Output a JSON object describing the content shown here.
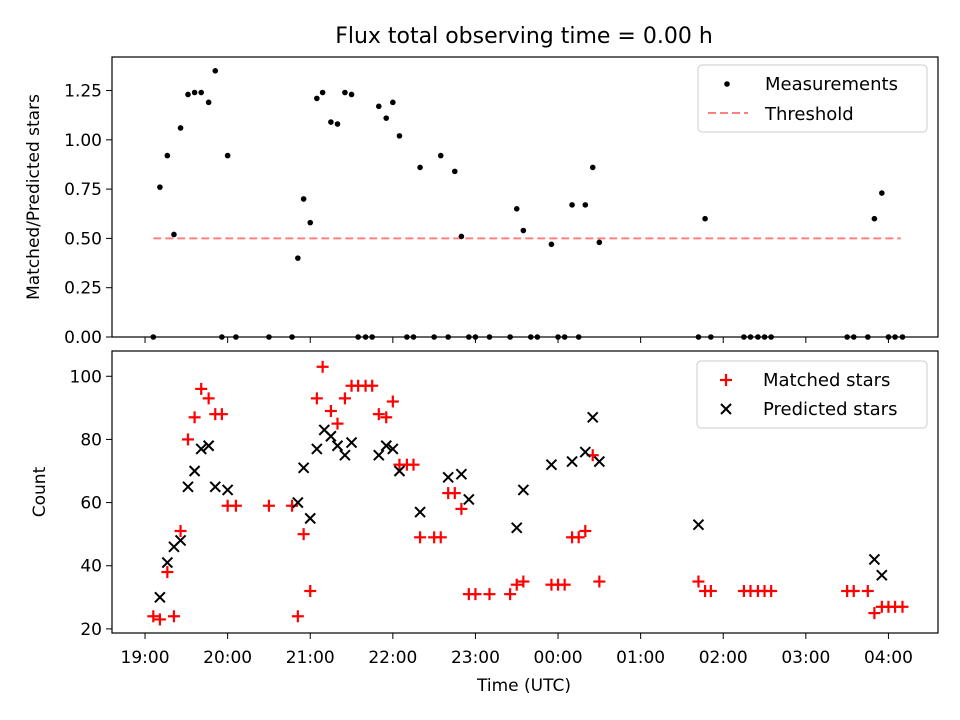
{
  "title": "Flux total observing time = 0.00 h",
  "chart_data": [
    {
      "type": "scatter",
      "title": "Flux total observing time = 0.00 h",
      "xlabel": "",
      "ylabel": "Matched/Predicted stars",
      "ylim": [
        0,
        1.42
      ],
      "yticks": [
        "0.00",
        "0.25",
        "0.50",
        "0.75",
        "1.00",
        "1.25"
      ],
      "ytick_values": [
        0,
        0.25,
        0.5,
        0.75,
        1.0,
        1.25
      ],
      "legend": {
        "placement": "top-right",
        "entries": [
          "Measurements",
          "Threshold"
        ]
      },
      "threshold": {
        "name": "Threshold",
        "y": 0.5,
        "x": [
          19.1,
          28.15
        ],
        "color": "#ff8080"
      },
      "series": [
        {
          "name": "Measurements",
          "color": "#000000",
          "x": [
            19.1,
            19.18,
            19.27,
            19.35,
            19.43,
            19.52,
            19.6,
            19.68,
            19.77,
            19.85,
            19.93,
            20.0,
            20.1,
            20.5,
            20.78,
            20.85,
            20.92,
            21.0,
            21.08,
            21.15,
            21.25,
            21.33,
            21.42,
            21.5,
            21.58,
            21.67,
            21.75,
            21.83,
            21.92,
            22.0,
            22.08,
            22.17,
            22.25,
            22.33,
            22.5,
            22.58,
            22.67,
            22.75,
            22.83,
            22.92,
            23.0,
            23.17,
            23.42,
            23.5,
            23.58,
            23.67,
            23.75,
            23.92,
            24.0,
            24.08,
            24.17,
            24.25,
            24.33,
            24.42,
            24.5,
            25.7,
            25.78,
            25.85,
            26.25,
            26.33,
            26.42,
            26.5,
            26.58,
            27.5,
            27.58,
            27.75,
            27.83,
            27.92,
            28.0,
            28.08,
            28.17
          ],
          "y": [
            0,
            0.76,
            0.92,
            0.52,
            1.06,
            1.23,
            1.24,
            1.24,
            1.19,
            1.35,
            0,
            0.92,
            0,
            0,
            0,
            0.4,
            0.7,
            0.58,
            1.21,
            1.24,
            1.09,
            1.08,
            1.24,
            1.23,
            0,
            0,
            0,
            1.17,
            1.11,
            1.19,
            1.02,
            0,
            0,
            0.86,
            0,
            0.92,
            0,
            0.84,
            0.51,
            0,
            0,
            0,
            0,
            0.65,
            0.54,
            0,
            0,
            0.47,
            0,
            0,
            0.67,
            0,
            0.67,
            0.86,
            0.48,
            0,
            0.6,
            0,
            0,
            0,
            0,
            0,
            0,
            0,
            0,
            0,
            0.6,
            0.73,
            0,
            0,
            0
          ]
        }
      ]
    },
    {
      "type": "scatter",
      "title": "",
      "xlabel": "Time (UTC)",
      "ylabel": "Count",
      "ylim": [
        18.7,
        108
      ],
      "yticks": [
        "20",
        "40",
        "60",
        "80",
        "100"
      ],
      "ytick_values": [
        20,
        40,
        60,
        80,
        100
      ],
      "xlim": [
        18.6,
        28.6
      ],
      "xticks": [
        "19:00",
        "20:00",
        "21:00",
        "22:00",
        "23:00",
        "00:00",
        "01:00",
        "02:00",
        "03:00",
        "04:00"
      ],
      "xtick_values": [
        19,
        20,
        21,
        22,
        23,
        24,
        25,
        26,
        27,
        28
      ],
      "legend": {
        "placement": "top-right",
        "entries": [
          "Matched stars",
          "Predicted stars"
        ]
      },
      "series": [
        {
          "name": "Matched stars",
          "marker": "plus",
          "color": "#ff0000",
          "x": [
            19.1,
            19.18,
            19.27,
            19.35,
            19.43,
            19.52,
            19.6,
            19.68,
            19.77,
            19.85,
            19.93,
            20.0,
            20.1,
            20.5,
            20.78,
            20.85,
            20.92,
            21.0,
            21.08,
            21.15,
            21.25,
            21.33,
            21.42,
            21.5,
            21.58,
            21.67,
            21.75,
            21.83,
            21.92,
            22.0,
            22.08,
            22.17,
            22.25,
            22.33,
            22.5,
            22.58,
            22.67,
            22.75,
            22.83,
            22.92,
            23.0,
            23.17,
            23.42,
            23.5,
            23.58,
            23.92,
            24.0,
            24.08,
            24.17,
            24.25,
            24.33,
            24.42,
            24.5,
            25.7,
            25.78,
            25.85,
            26.25,
            26.33,
            26.42,
            26.5,
            26.58,
            27.5,
            27.58,
            27.75,
            27.83,
            27.92,
            28.0,
            28.08,
            28.17
          ],
          "y": [
            24,
            23,
            38,
            24,
            51,
            80,
            87,
            96,
            93,
            88,
            88,
            59,
            59,
            59,
            59,
            24,
            50,
            32,
            93,
            103,
            89,
            85,
            93,
            97,
            97,
            97,
            97,
            88,
            87,
            92,
            72,
            72,
            72,
            49,
            49,
            49,
            63,
            63,
            58,
            31,
            31,
            31,
            31,
            34,
            35,
            34,
            34,
            34,
            49,
            49,
            51,
            75,
            35,
            35,
            32,
            32,
            32,
            32,
            32,
            32,
            32,
            32,
            32,
            32,
            25,
            27,
            27,
            27,
            27
          ]
        },
        {
          "name": "Predicted stars",
          "marker": "x",
          "color": "#000000",
          "x": [
            19.18,
            19.27,
            19.35,
            19.43,
            19.52,
            19.6,
            19.68,
            19.77,
            19.85,
            20.0,
            20.85,
            20.92,
            21.0,
            21.08,
            21.17,
            21.25,
            21.33,
            21.42,
            21.5,
            21.83,
            21.92,
            22.0,
            22.08,
            22.33,
            22.67,
            22.83,
            22.92,
            23.5,
            23.58,
            23.92,
            24.17,
            24.33,
            24.42,
            24.5,
            25.7,
            27.83,
            27.92
          ],
          "y": [
            30,
            41,
            46,
            48,
            65,
            70,
            77,
            78,
            65,
            64,
            60,
            71,
            55,
            77,
            83,
            81,
            78,
            75,
            79,
            75,
            78,
            77,
            70,
            57,
            68,
            69,
            61,
            52,
            64,
            72,
            73,
            76,
            87,
            73,
            53,
            42,
            37
          ]
        }
      ]
    }
  ]
}
